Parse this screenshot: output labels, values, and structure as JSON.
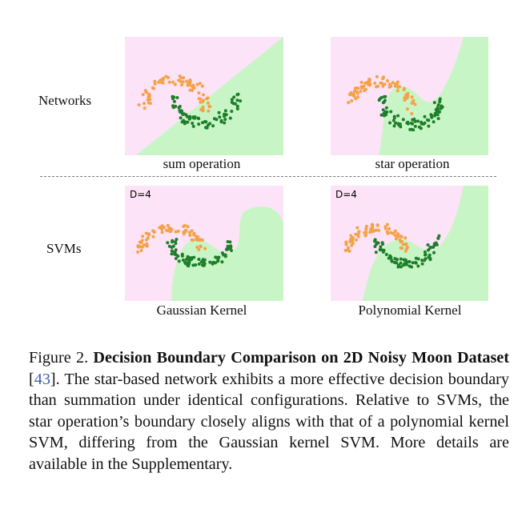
{
  "figure": {
    "rows": [
      {
        "label": "Networks",
        "panels": [
          {
            "id": "sum",
            "caption": "sum operation",
            "tag": ""
          },
          {
            "id": "star",
            "caption": "star operation",
            "tag": ""
          }
        ]
      },
      {
        "label": "SVMs",
        "panels": [
          {
            "id": "gauss",
            "caption": "Gaussian Kernel",
            "tag": "D=4"
          },
          {
            "id": "poly",
            "caption": "Polynomial Kernel",
            "tag": "D=4"
          }
        ]
      }
    ],
    "colors": {
      "region_a": "#fde3f7",
      "region_b": "#c8f5c6",
      "class_a": "#f4a24a",
      "class_b": "#1d7f2a"
    }
  },
  "caption": {
    "prefix": "Figure 2. ",
    "title": "Decision Boundary Comparison on 2D Noisy Moon Dataset",
    "ref_open": " [",
    "ref": "43",
    "ref_close": "].",
    "body": "  The star-based network exhibits a more effective decision boundary than summation under identical configurations. Relative to SVMs, the star operation’s boundary closely aligns with that of a polynomial kernel SVM, differing from the Gaussian kernel SVM. More details are available in the Supplementary."
  }
}
